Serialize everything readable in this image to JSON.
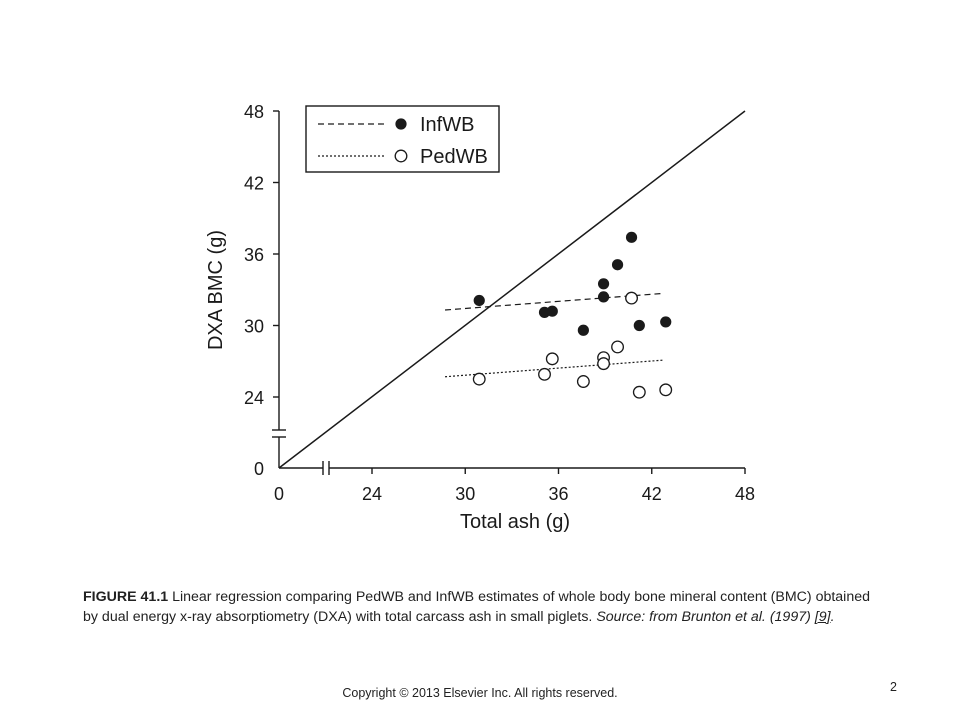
{
  "chart_data": {
    "type": "scatter",
    "xlabel": "Total ash (g)",
    "ylabel": "DXA BMC (g)",
    "xlim": [
      0,
      48
    ],
    "ylim": [
      0,
      48
    ],
    "x_ticks": [
      "0",
      "24",
      "30",
      "36",
      "42",
      "48"
    ],
    "y_ticks": [
      "0",
      "24",
      "30",
      "36",
      "42",
      "48"
    ],
    "axis_break": true,
    "grid": false,
    "legend_position": "top-left",
    "identity_line": {
      "from": [
        0,
        0
      ],
      "to": [
        48,
        48
      ]
    },
    "series": [
      {
        "name": "InfWB",
        "marker": "filled-circle",
        "line_style": "dashed",
        "x": [
          30.9,
          35.1,
          35.6,
          37.6,
          38.9,
          38.9,
          39.8,
          40.7,
          41.2,
          42.9
        ],
        "y": [
          32.1,
          31.1,
          31.2,
          29.6,
          33.5,
          32.4,
          35.1,
          37.4,
          30.0,
          30.3
        ],
        "fit_line": {
          "x": [
            28.7,
            42.8
          ],
          "y": [
            31.3,
            32.7
          ]
        }
      },
      {
        "name": "PedWB",
        "marker": "open-circle",
        "line_style": "dotted",
        "x": [
          30.9,
          35.1,
          35.6,
          37.6,
          38.9,
          38.9,
          39.8,
          40.7,
          41.2,
          42.9
        ],
        "y": [
          25.5,
          25.9,
          27.2,
          25.3,
          27.3,
          26.8,
          28.2,
          32.3,
          24.4,
          24.6
        ],
        "fit_line": {
          "x": [
            28.7,
            42.8
          ],
          "y": [
            25.7,
            27.1
          ]
        }
      }
    ]
  },
  "caption": {
    "label": "FIGURE 41.1",
    "text": " Linear regression comparing PedWB and InfWB estimates of whole body bone mineral content (BMC) obtained by dual energy x-ray absorptiometry (DXA) with total carcass ash in small piglets. ",
    "source": "Source: from Brunton et al. (1997) ",
    "ref": "[9]",
    "end": "."
  },
  "footer": {
    "copyright": "Copyright © 2013 Elsevier Inc. All rights reserved.",
    "page_number": "2"
  }
}
